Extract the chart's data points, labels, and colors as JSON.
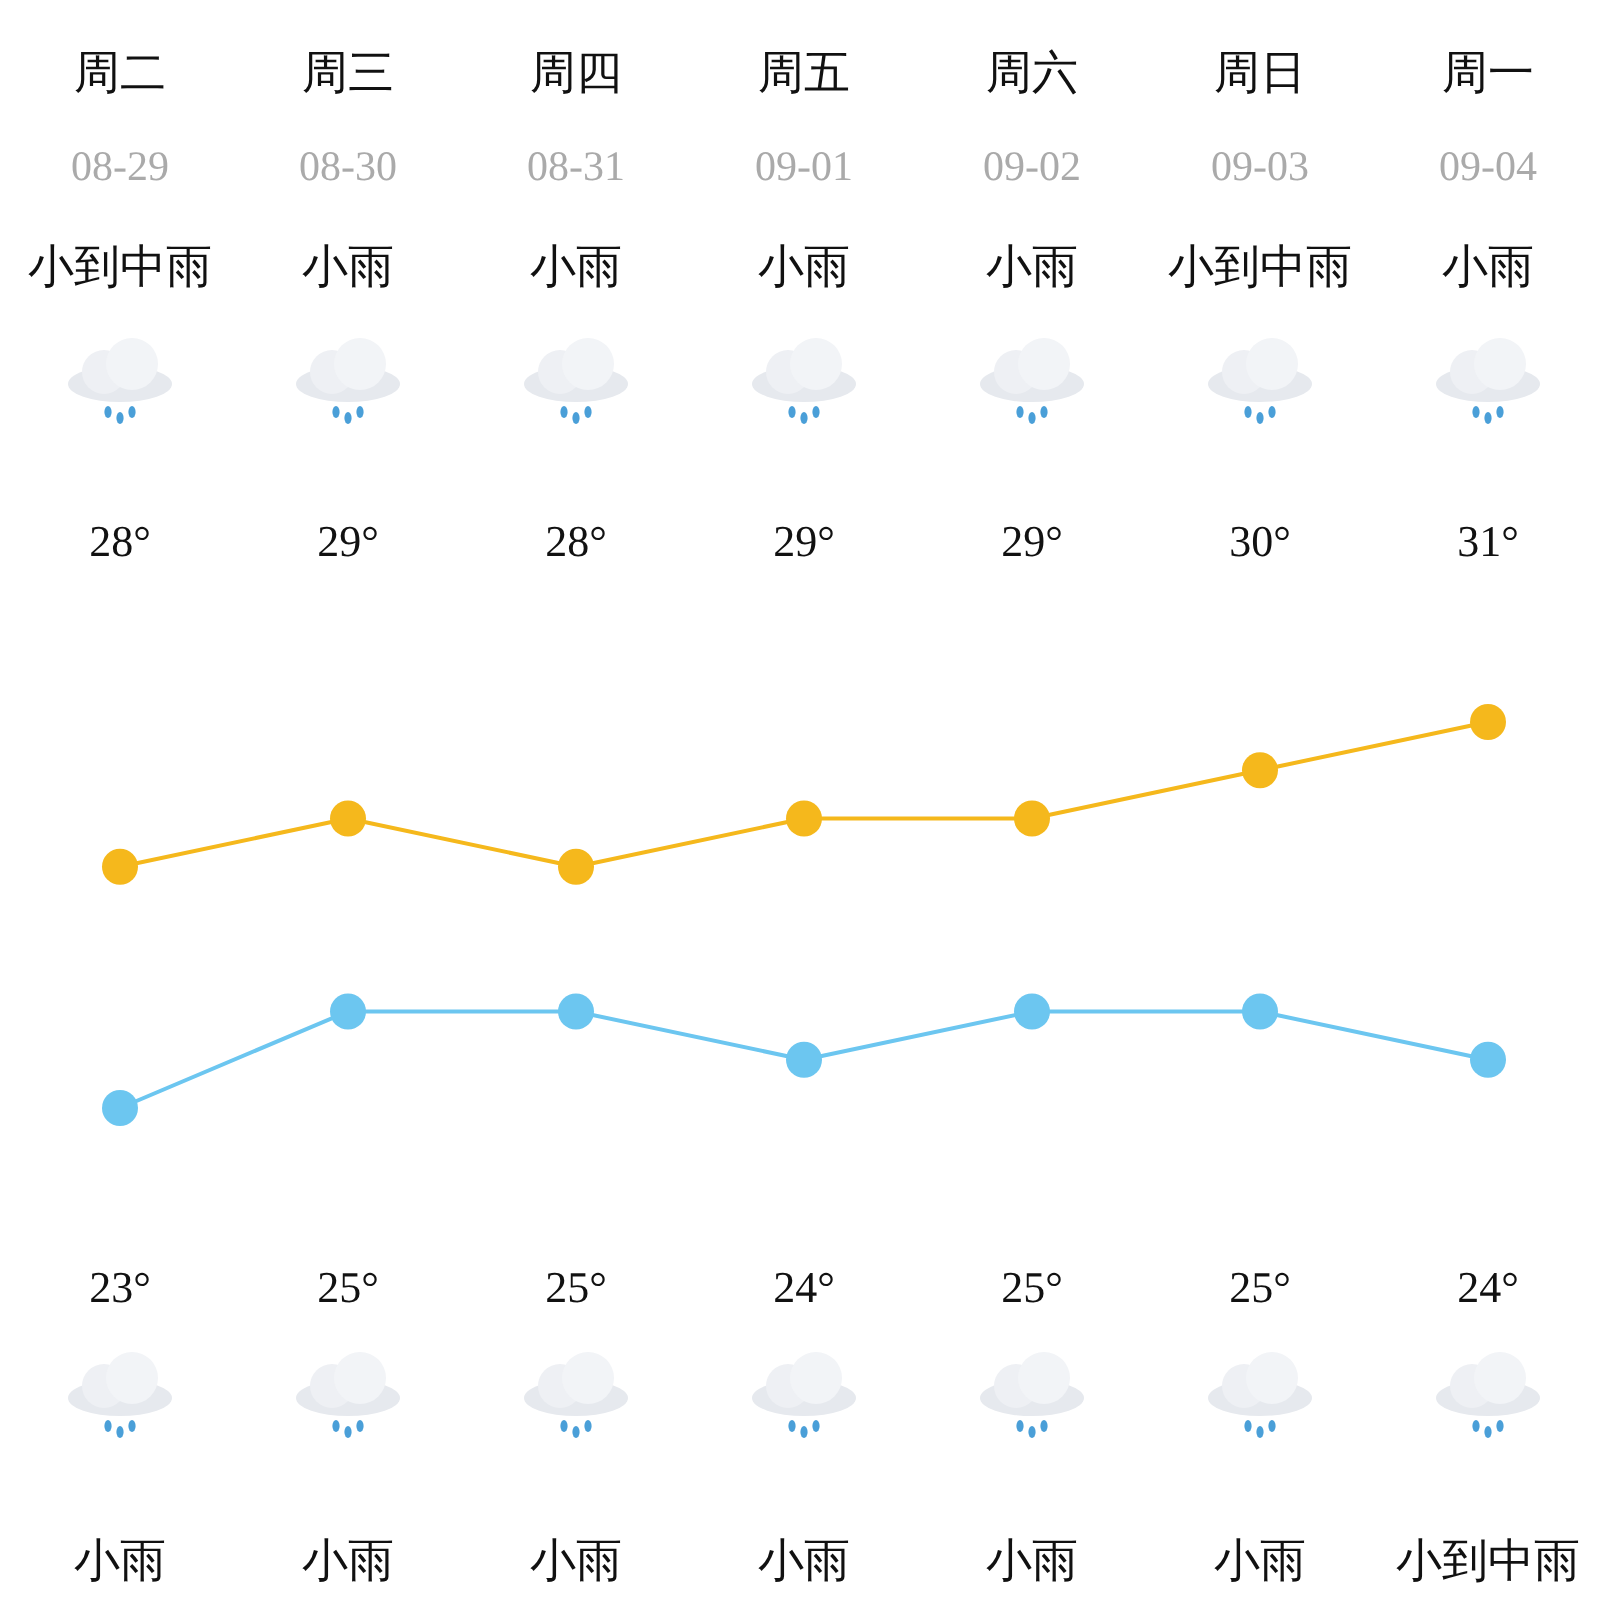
{
  "chart_data": {
    "type": "line",
    "categories": [
      "周二",
      "周三",
      "周四",
      "周五",
      "周六",
      "周日",
      "周一"
    ],
    "series": [
      {
        "color": "#f5b81c",
        "values": [
          28,
          29,
          28,
          29,
          29,
          30,
          31
        ],
        "value_labels": [
          "28°",
          "29°",
          "28°",
          "29°",
          "29°",
          "30°",
          "31°"
        ]
      },
      {
        "color": "#6cc6f0",
        "values": [
          23,
          25,
          25,
          24,
          25,
          25,
          24
        ],
        "value_labels": [
          "23°",
          "25°",
          "25°",
          "24°",
          "25°",
          "25°",
          "24°"
        ]
      }
    ],
    "annotations": [
      "08-29",
      "08-30",
      "08-31",
      "09-01",
      "09-02",
      "09-03",
      "09-04",
      "小到中雨",
      "小雨",
      "小雨",
      "小雨",
      "小雨",
      "小到中雨",
      "小雨",
      "小雨",
      "小雨",
      "小雨",
      "小雨",
      "小雨",
      "小雨",
      "小到中雨"
    ],
    "marker": "circle"
  }
}
